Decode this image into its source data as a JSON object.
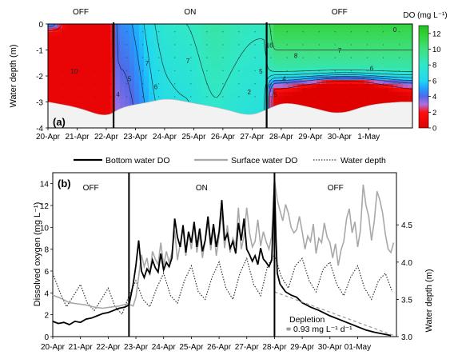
{
  "chart_data": [
    {
      "panel_label": "(a)",
      "type": "heatmap",
      "ylabel": "Water depth (m)",
      "yticks": [
        0,
        -1,
        -2,
        -3,
        -4
      ],
      "ylim": [
        -4,
        0
      ],
      "xlim": [
        20.5,
        33.0
      ],
      "xticks": [
        "20-Apr",
        "21-Apr",
        "22-Apr",
        "23-Apr",
        "24-Apr",
        "25-Apr",
        "26-Apr",
        "27-Apr",
        "28-Apr",
        "29-Apr",
        "30-Apr",
        "1-May"
      ],
      "xtick_day": [
        20,
        21,
        22,
        23,
        24,
        25,
        26,
        27,
        28,
        29,
        30,
        31
      ],
      "phases": [
        {
          "label": "OFF",
          "start": 19.5,
          "end": 22.75
        },
        {
          "label": "ON",
          "start": 22.75,
          "end": 28.0
        },
        {
          "label": "OFF",
          "start": 28.0,
          "end": 33.0
        }
      ],
      "switch_days": [
        22.75,
        28.0
      ],
      "colorbar": {
        "title": "DO (mg L⁻¹)",
        "ticks": [
          0,
          2,
          4,
          6,
          8,
          10,
          12
        ],
        "range": [
          0,
          13
        ],
        "stops": [
          {
            "v": 0,
            "c": "#e00000"
          },
          {
            "v": 2,
            "c": "#ff1010"
          },
          {
            "v": 3,
            "c": "#b070e0"
          },
          {
            "v": 4,
            "c": "#5068e8"
          },
          {
            "v": 5,
            "c": "#20a0ff"
          },
          {
            "v": 6,
            "c": "#20d8f0"
          },
          {
            "v": 8,
            "c": "#30e8c8"
          },
          {
            "v": 10,
            "c": "#40e080"
          },
          {
            "v": 12,
            "c": "#30d030"
          },
          {
            "v": 13,
            "c": "#20c020"
          }
        ]
      },
      "contour_labels": [
        "10",
        "7",
        "5",
        "4",
        "6",
        "7",
        "2",
        "5",
        "10",
        "5",
        "4",
        "8",
        "7",
        "6",
        "0"
      ],
      "bottom_depth_profile": [
        {
          "day": 20.5,
          "depth": -3.0
        },
        {
          "day": 21.5,
          "depth": -3.2
        },
        {
          "day": 22.5,
          "depth": -3.6
        },
        {
          "day": 23.0,
          "depth": -3.2
        },
        {
          "day": 24.0,
          "depth": -3.0
        },
        {
          "day": 24.6,
          "depth": -2.85
        },
        {
          "day": 25.5,
          "depth": -3.05
        },
        {
          "day": 26.5,
          "depth": -3.25
        },
        {
          "day": 27.4,
          "depth": -3.55
        },
        {
          "day": 28.0,
          "depth": -3.3
        },
        {
          "day": 28.6,
          "depth": -3.0
        },
        {
          "day": 29.5,
          "depth": -3.2
        },
        {
          "day": 30.5,
          "depth": -3.5
        },
        {
          "day": 31.5,
          "depth": -3.1
        },
        {
          "day": 32.6,
          "depth": -3.0
        }
      ]
    },
    {
      "panel_label": "(b)",
      "type": "line",
      "ylabel": "Dissolved oxygen (mg L⁻¹)",
      "ylabel2": "Water depth (m)",
      "yticks": [
        0,
        2,
        4,
        6,
        8,
        10,
        12,
        14
      ],
      "ylim": [
        0,
        15
      ],
      "y2ticks": [
        3.0,
        3.5,
        4.0,
        4.5
      ],
      "y2lim": [
        3.0,
        5.2
      ],
      "xlim": [
        20.0,
        32.4
      ],
      "xticks": [
        "20-Apr",
        "21-Apr",
        "22-Apr",
        "23-Apr",
        "24-Apr",
        "25-Apr",
        "26-Apr",
        "27-Apr",
        "28-Apr",
        "29-Apr",
        "30-Apr",
        "01-May"
      ],
      "xtick_day": [
        20,
        21,
        22,
        23,
        24,
        25,
        26,
        27,
        28,
        29,
        30,
        31
      ],
      "phases": [
        {
          "label": "OFF",
          "start": 19.5,
          "end": 22.75
        },
        {
          "label": "ON",
          "start": 22.75,
          "end": 28.0
        },
        {
          "label": "OFF",
          "start": 28.0,
          "end": 33.0
        }
      ],
      "switch_days": [
        22.75,
        28.0
      ],
      "annotation": {
        "line1": "Depletion",
        "line2": "= 0.93 mg L⁻¹ d⁻¹"
      },
      "legend": {
        "placement": "top"
      },
      "series": [
        {
          "name": "Bottom water DO",
          "color": "#000000",
          "x": [
            20.0,
            20.2,
            20.4,
            20.6,
            20.8,
            21.0,
            21.2,
            21.4,
            21.6,
            21.8,
            22.0,
            22.2,
            22.4,
            22.6,
            22.75,
            22.8,
            22.9,
            23.0,
            23.1,
            23.2,
            23.3,
            23.4,
            23.5,
            23.6,
            23.7,
            23.8,
            23.9,
            24.0,
            24.1,
            24.2,
            24.3,
            24.4,
            24.5,
            24.6,
            24.7,
            24.8,
            24.9,
            25.0,
            25.1,
            25.2,
            25.3,
            25.4,
            25.5,
            25.6,
            25.7,
            25.8,
            25.9,
            26.0,
            26.1,
            26.2,
            26.3,
            26.4,
            26.5,
            26.6,
            26.7,
            26.8,
            26.9,
            27.0,
            27.1,
            27.2,
            27.3,
            27.4,
            27.5,
            27.6,
            27.7,
            27.8,
            27.9,
            28.0,
            28.05,
            28.1,
            28.2,
            28.4,
            28.6,
            28.8,
            29.0,
            29.3,
            29.6,
            30.0,
            30.3,
            30.6,
            31.0,
            31.3,
            31.6,
            32.0,
            32.2
          ],
          "y": [
            1.4,
            1.2,
            1.3,
            1.1,
            1.4,
            1.3,
            1.6,
            1.7,
            1.9,
            2.1,
            2.2,
            2.4,
            2.6,
            2.7,
            2.9,
            3.5,
            4.8,
            6.5,
            8.8,
            6.0,
            5.4,
            6.2,
            5.8,
            7.0,
            6.3,
            5.9,
            7.6,
            6.1,
            6.8,
            6.4,
            7.2,
            10.8,
            9.1,
            8.2,
            10.2,
            7.7,
            9.6,
            8.6,
            10.5,
            8.2,
            9.9,
            7.8,
            8.8,
            11.0,
            8.4,
            10.3,
            8.2,
            9.6,
            12.5,
            8.8,
            9.4,
            8.1,
            8.7,
            7.6,
            10.4,
            8.8,
            10.8,
            8.0,
            7.5,
            6.9,
            7.4,
            6.6,
            8.1,
            7.1,
            6.8,
            6.4,
            7.0,
            14.2,
            9.2,
            5.8,
            4.8,
            4.1,
            3.8,
            3.6,
            3.1,
            2.7,
            2.4,
            1.9,
            1.6,
            1.3,
            0.9,
            0.6,
            0.4,
            0.2,
            0.1
          ]
        },
        {
          "name": "Surface water DO",
          "color": "#a8a8a8",
          "x": [
            20.0,
            20.3,
            20.6,
            20.9,
            21.2,
            21.5,
            21.8,
            22.1,
            22.4,
            22.7,
            22.9,
            23.0,
            23.1,
            23.2,
            23.3,
            23.4,
            23.5,
            23.6,
            23.7,
            23.8,
            23.9,
            24.0,
            24.1,
            24.2,
            24.3,
            24.4,
            24.5,
            24.6,
            24.7,
            24.8,
            24.9,
            25.0,
            25.1,
            25.2,
            25.3,
            25.4,
            25.5,
            25.6,
            25.7,
            25.8,
            25.9,
            26.0,
            26.1,
            26.2,
            26.3,
            26.4,
            26.5,
            26.6,
            26.7,
            26.8,
            26.9,
            27.0,
            27.1,
            27.2,
            27.3,
            27.4,
            27.5,
            27.6,
            27.7,
            27.8,
            27.9,
            28.0,
            28.1,
            28.2,
            28.3,
            28.4,
            28.5,
            28.6,
            28.7,
            28.8,
            28.9,
            29.0,
            29.1,
            29.2,
            29.3,
            29.4,
            29.5,
            29.6,
            29.7,
            29.8,
            29.9,
            30.0,
            30.1,
            30.2,
            30.3,
            30.4,
            30.5,
            30.6,
            30.7,
            30.8,
            30.9,
            31.0,
            31.1,
            31.2,
            31.3,
            31.4,
            31.5,
            31.6,
            31.7,
            31.8,
            31.9,
            32.0,
            32.1,
            32.2,
            32.3
          ],
          "y": [
            3.8,
            3.5,
            3.1,
            3.0,
            2.9,
            2.7,
            2.6,
            2.7,
            2.8,
            3.0,
            2.8,
            3.6,
            5.5,
            7.5,
            6.4,
            7.2,
            5.6,
            7.8,
            7.1,
            6.6,
            8.6,
            6.5,
            7.8,
            6.8,
            7.7,
            9.7,
            7.0,
            8.5,
            9.9,
            7.4,
            9.5,
            8.0,
            10.3,
            7.7,
            9.4,
            7.2,
            8.8,
            10.5,
            7.9,
            9.9,
            7.4,
            9.2,
            11.4,
            8.1,
            10.2,
            7.7,
            9.0,
            8.3,
            11.8,
            8.0,
            9.2,
            11.8,
            9.5,
            8.2,
            8.7,
            10.7,
            8.3,
            9.6,
            8.7,
            8.0,
            9.2,
            14.4,
            12.5,
            11.5,
            10.6,
            12.1,
            11.3,
            10.0,
            9.5,
            9.8,
            11.0,
            9.6,
            8.0,
            9.2,
            8.7,
            10.3,
            7.6,
            9.0,
            8.6,
            10.4,
            9.1,
            8.6,
            7.2,
            8.5,
            6.5,
            7.9,
            8.7,
            10.8,
            11.7,
            9.5,
            10.5,
            8.2,
            9.7,
            13.9,
            12.0,
            11.0,
            8.8,
            10.6,
            13.3,
            12.5,
            11.3,
            9.4,
            8.0,
            7.7,
            8.6
          ]
        },
        {
          "name": "Water depth",
          "color": "#333333",
          "axis": "right",
          "x": [
            20.0,
            20.25,
            20.5,
            20.75,
            21.0,
            21.25,
            21.5,
            21.75,
            22.0,
            22.25,
            22.5,
            22.75,
            23.0,
            23.25,
            23.5,
            23.75,
            24.0,
            24.25,
            24.5,
            24.75,
            25.0,
            25.25,
            25.5,
            25.75,
            26.0,
            26.25,
            26.5,
            26.75,
            27.0,
            27.25,
            27.5,
            27.75,
            28.0,
            28.25,
            28.5,
            28.75,
            29.0,
            29.25,
            29.5,
            29.75,
            30.0,
            30.25,
            30.5,
            30.75,
            31.0,
            31.25,
            31.5,
            31.75,
            32.0,
            32.25
          ],
          "y": [
            3.85,
            3.6,
            3.4,
            3.55,
            3.7,
            3.45,
            3.35,
            3.5,
            3.65,
            3.4,
            3.3,
            3.55,
            3.75,
            3.5,
            3.4,
            3.65,
            3.85,
            3.55,
            3.45,
            3.75,
            3.95,
            3.6,
            3.5,
            3.8,
            4.0,
            3.65,
            3.5,
            3.85,
            4.05,
            3.7,
            3.55,
            3.95,
            4.1,
            3.8,
            3.65,
            3.95,
            4.05,
            3.75,
            3.6,
            3.9,
            4.0,
            3.7,
            3.55,
            3.8,
            3.95,
            3.65,
            3.5,
            3.75,
            3.85,
            3.6
          ]
        }
      ],
      "trend_line": {
        "x": [
          28.0,
          32.3
        ],
        "y": [
          4.1,
          0.1
        ],
        "color": "#999999"
      }
    }
  ]
}
